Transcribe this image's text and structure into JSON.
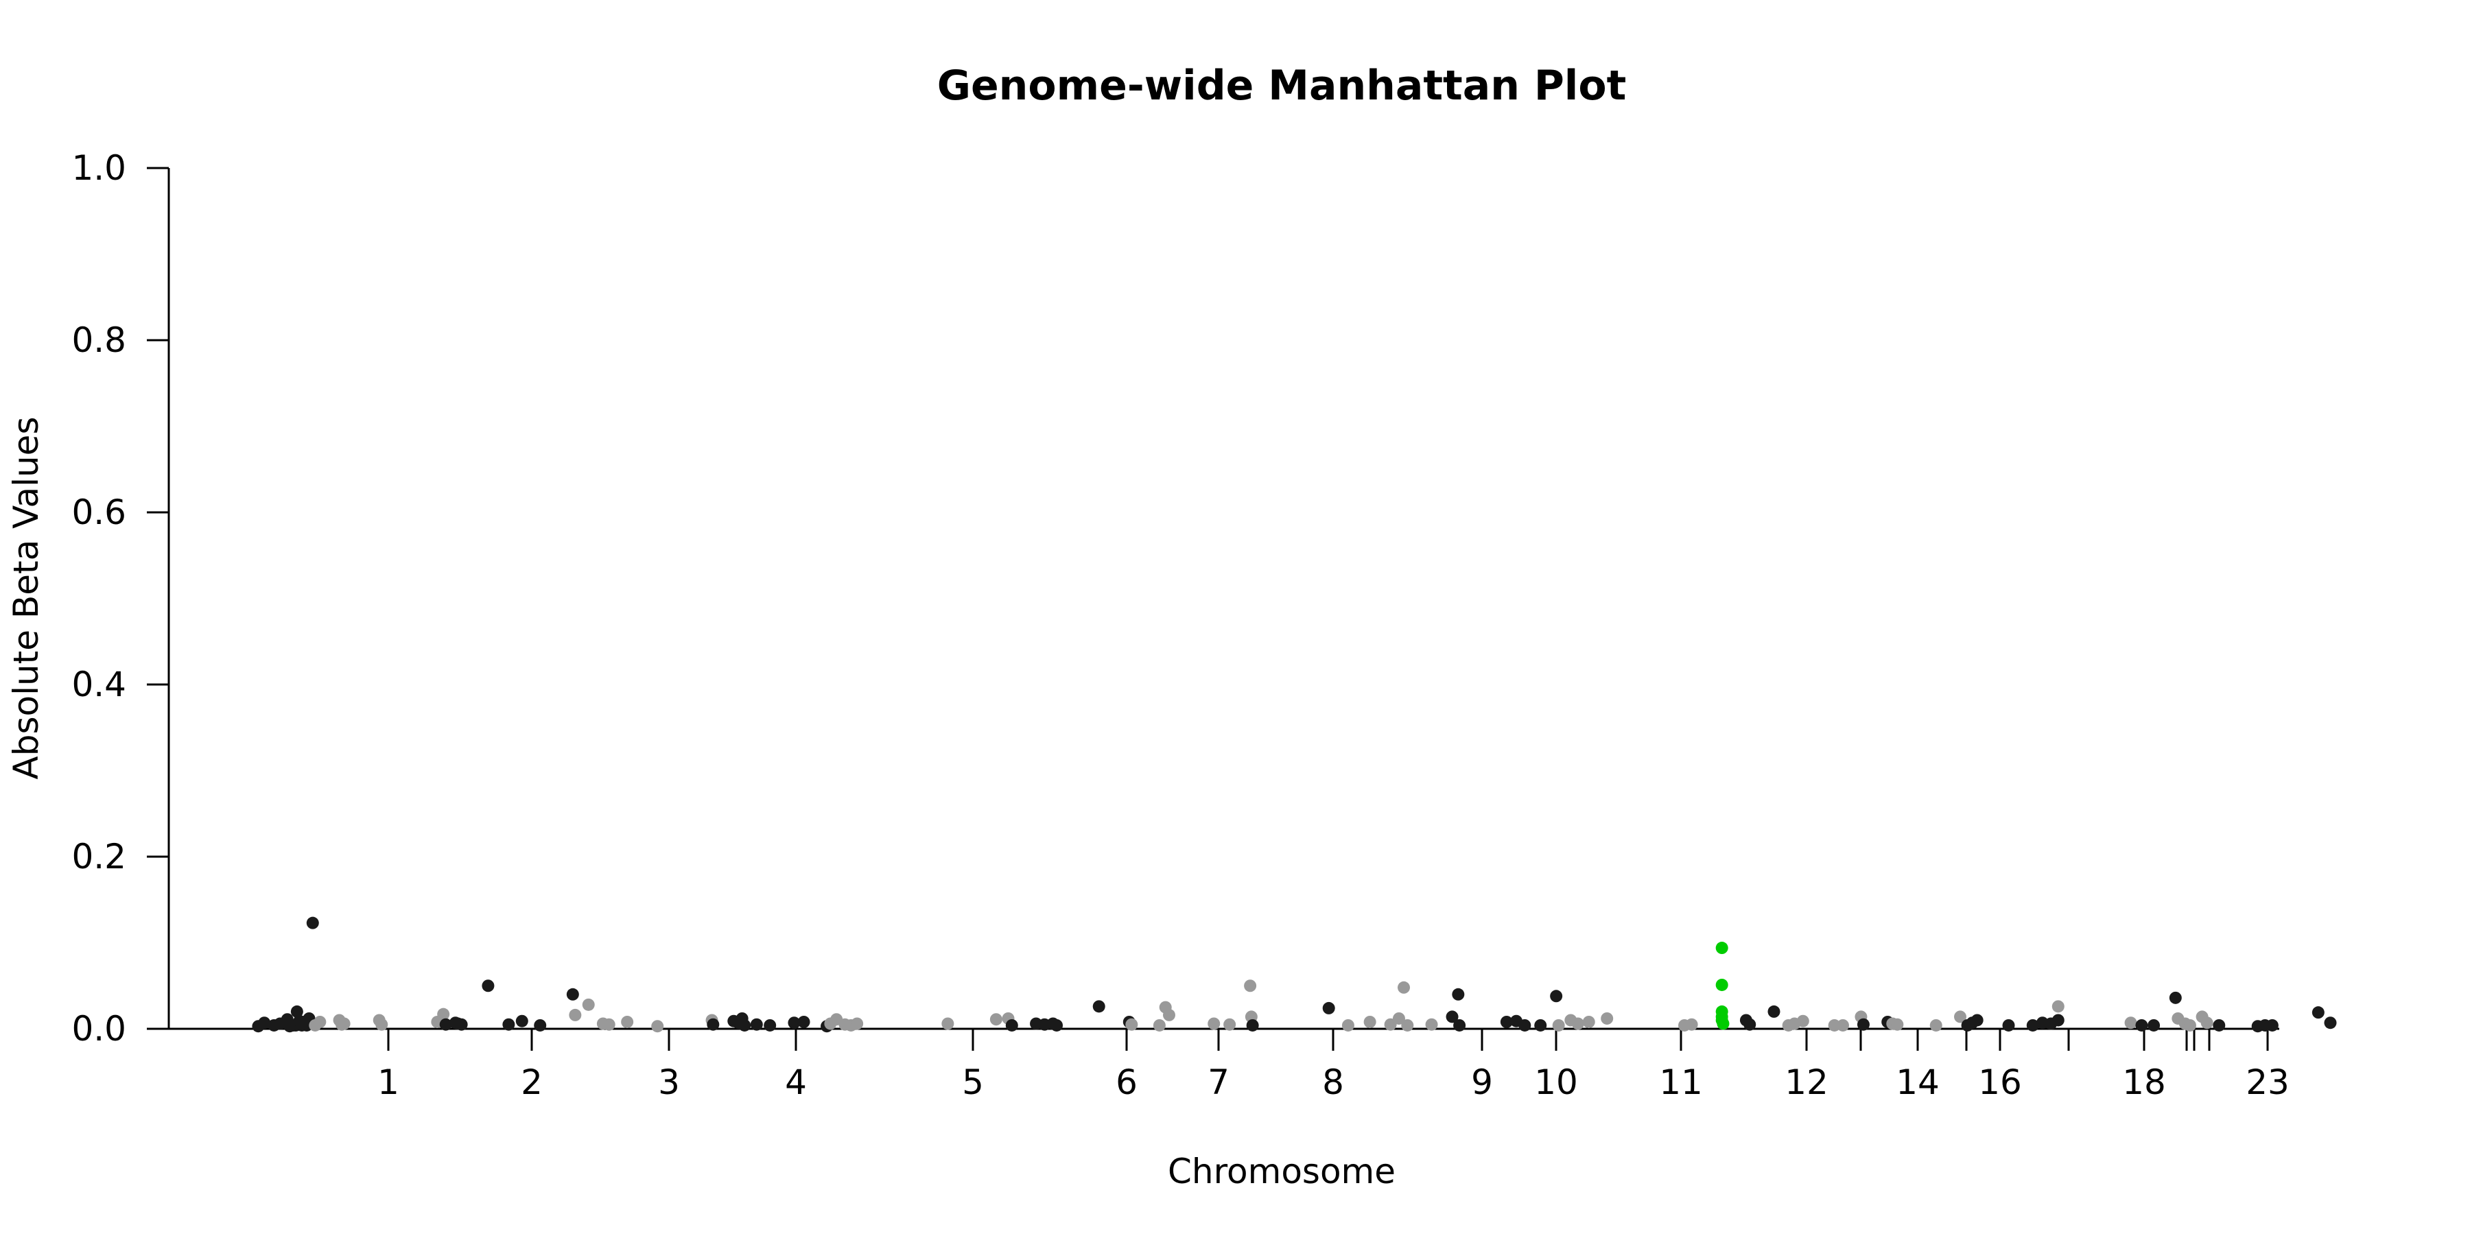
{
  "chart_data": {
    "type": "scatter",
    "title": "Genome-wide Manhattan Plot",
    "xlabel": "Chromosome",
    "ylabel": "Absolute Beta Values",
    "ylim": [
      0,
      1.0
    ],
    "y_ticks": [
      "0.0",
      "0.2",
      "0.4",
      "0.6",
      "0.8",
      "1.0"
    ],
    "x_tick_labels": [
      "1",
      "2",
      "3",
      "4",
      "5",
      "6",
      "7",
      "8",
      "9",
      "10",
      "11",
      "12",
      "14",
      "16",
      "18",
      "23"
    ],
    "colors": {
      "odd_chromosome": "#1a1a1a",
      "even_chromosome": "#999999",
      "highlight": "#00cc00"
    },
    "grid": false,
    "legend": "none",
    "points": [
      {
        "x": 0.15,
        "y": 0.003,
        "c": "odd_chromosome"
      },
      {
        "x": 0.2,
        "y": 0.007,
        "c": "odd_chromosome"
      },
      {
        "x": 0.28,
        "y": 0.004,
        "c": "odd_chromosome"
      },
      {
        "x": 0.33,
        "y": 0.006,
        "c": "odd_chromosome"
      },
      {
        "x": 0.39,
        "y": 0.011,
        "c": "odd_chromosome"
      },
      {
        "x": 0.41,
        "y": 0.003,
        "c": "odd_chromosome"
      },
      {
        "x": 0.44,
        "y": 0.004,
        "c": "odd_chromosome"
      },
      {
        "x": 0.46,
        "y": 0.004,
        "c": "odd_chromosome"
      },
      {
        "x": 0.47,
        "y": 0.02,
        "c": "odd_chromosome"
      },
      {
        "x": 0.48,
        "y": 0.005,
        "c": "odd_chromosome"
      },
      {
        "x": 0.49,
        "y": 0.009,
        "c": "odd_chromosome"
      },
      {
        "x": 0.51,
        "y": 0.004,
        "c": "odd_chromosome"
      },
      {
        "x": 0.52,
        "y": 0.006,
        "c": "odd_chromosome"
      },
      {
        "x": 0.53,
        "y": 0.008,
        "c": "odd_chromosome"
      },
      {
        "x": 0.54,
        "y": 0.005,
        "c": "odd_chromosome"
      },
      {
        "x": 0.55,
        "y": 0.004,
        "c": "odd_chromosome"
      },
      {
        "x": 0.57,
        "y": 0.012,
        "c": "odd_chromosome"
      },
      {
        "x": 0.6,
        "y": 0.123,
        "c": "odd_chromosome"
      },
      {
        "x": 0.62,
        "y": 0.004,
        "c": "even_chromosome"
      },
      {
        "x": 0.66,
        "y": 0.008,
        "c": "even_chromosome"
      },
      {
        "x": 0.82,
        "y": 0.01,
        "c": "even_chromosome"
      },
      {
        "x": 0.84,
        "y": 0.005,
        "c": "even_chromosome"
      },
      {
        "x": 0.86,
        "y": 0.006,
        "c": "even_chromosome"
      },
      {
        "x": 1.15,
        "y": 0.01,
        "c": "even_chromosome"
      },
      {
        "x": 1.17,
        "y": 0.005,
        "c": "even_chromosome"
      },
      {
        "x": 1.63,
        "y": 0.008,
        "c": "even_chromosome"
      },
      {
        "x": 1.68,
        "y": 0.017,
        "c": "even_chromosome"
      },
      {
        "x": 1.7,
        "y": 0.005,
        "c": "odd_chromosome"
      },
      {
        "x": 1.78,
        "y": 0.007,
        "c": "odd_chromosome"
      },
      {
        "x": 1.8,
        "y": 0.006,
        "c": "odd_chromosome"
      },
      {
        "x": 1.83,
        "y": 0.005,
        "c": "odd_chromosome"
      },
      {
        "x": 2.05,
        "y": 0.05,
        "c": "odd_chromosome"
      },
      {
        "x": 2.22,
        "y": 0.005,
        "c": "odd_chromosome"
      },
      {
        "x": 2.33,
        "y": 0.009,
        "c": "odd_chromosome"
      },
      {
        "x": 2.48,
        "y": 0.004,
        "c": "odd_chromosome"
      },
      {
        "x": 2.75,
        "y": 0.04,
        "c": "odd_chromosome"
      },
      {
        "x": 2.77,
        "y": 0.016,
        "c": "even_chromosome"
      },
      {
        "x": 2.88,
        "y": 0.028,
        "c": "even_chromosome"
      },
      {
        "x": 3.0,
        "y": 0.006,
        "c": "even_chromosome"
      },
      {
        "x": 3.05,
        "y": 0.005,
        "c": "even_chromosome"
      },
      {
        "x": 3.2,
        "y": 0.008,
        "c": "even_chromosome"
      },
      {
        "x": 3.45,
        "y": 0.003,
        "c": "even_chromosome"
      },
      {
        "x": 3.9,
        "y": 0.01,
        "c": "even_chromosome"
      },
      {
        "x": 3.91,
        "y": 0.005,
        "c": "odd_chromosome"
      },
      {
        "x": 4.08,
        "y": 0.009,
        "c": "odd_chromosome"
      },
      {
        "x": 4.12,
        "y": 0.007,
        "c": "odd_chromosome"
      },
      {
        "x": 4.15,
        "y": 0.012,
        "c": "odd_chromosome"
      },
      {
        "x": 4.17,
        "y": 0.004,
        "c": "odd_chromosome"
      },
      {
        "x": 4.27,
        "y": 0.005,
        "c": "odd_chromosome"
      },
      {
        "x": 4.38,
        "y": 0.004,
        "c": "odd_chromosome"
      },
      {
        "x": 4.58,
        "y": 0.007,
        "c": "odd_chromosome"
      },
      {
        "x": 4.66,
        "y": 0.008,
        "c": "odd_chromosome"
      },
      {
        "x": 4.85,
        "y": 0.003,
        "c": "odd_chromosome"
      },
      {
        "x": 4.88,
        "y": 0.006,
        "c": "even_chromosome"
      },
      {
        "x": 4.93,
        "y": 0.011,
        "c": "even_chromosome"
      },
      {
        "x": 5.0,
        "y": 0.005,
        "c": "even_chromosome"
      },
      {
        "x": 5.05,
        "y": 0.004,
        "c": "even_chromosome"
      },
      {
        "x": 5.1,
        "y": 0.006,
        "c": "even_chromosome"
      },
      {
        "x": 5.85,
        "y": 0.006,
        "c": "even_chromosome"
      },
      {
        "x": 6.25,
        "y": 0.011,
        "c": "even_chromosome"
      },
      {
        "x": 6.35,
        "y": 0.012,
        "c": "even_chromosome"
      },
      {
        "x": 6.38,
        "y": 0.004,
        "c": "odd_chromosome"
      },
      {
        "x": 6.58,
        "y": 0.006,
        "c": "odd_chromosome"
      },
      {
        "x": 6.65,
        "y": 0.005,
        "c": "odd_chromosome"
      },
      {
        "x": 6.72,
        "y": 0.006,
        "c": "odd_chromosome"
      },
      {
        "x": 6.75,
        "y": 0.004,
        "c": "odd_chromosome"
      },
      {
        "x": 7.1,
        "y": 0.026,
        "c": "odd_chromosome"
      },
      {
        "x": 7.35,
        "y": 0.008,
        "c": "odd_chromosome"
      },
      {
        "x": 7.37,
        "y": 0.005,
        "c": "even_chromosome"
      },
      {
        "x": 7.6,
        "y": 0.004,
        "c": "even_chromosome"
      },
      {
        "x": 7.65,
        "y": 0.025,
        "c": "even_chromosome"
      },
      {
        "x": 7.68,
        "y": 0.016,
        "c": "even_chromosome"
      },
      {
        "x": 8.05,
        "y": 0.006,
        "c": "even_chromosome"
      },
      {
        "x": 8.18,
        "y": 0.005,
        "c": "even_chromosome"
      },
      {
        "x": 8.35,
        "y": 0.05,
        "c": "even_chromosome"
      },
      {
        "x": 8.36,
        "y": 0.014,
        "c": "even_chromosome"
      },
      {
        "x": 8.37,
        "y": 0.004,
        "c": "odd_chromosome"
      },
      {
        "x": 9.0,
        "y": 0.024,
        "c": "odd_chromosome"
      },
      {
        "x": 9.16,
        "y": 0.004,
        "c": "even_chromosome"
      },
      {
        "x": 9.34,
        "y": 0.008,
        "c": "even_chromosome"
      },
      {
        "x": 9.51,
        "y": 0.005,
        "c": "even_chromosome"
      },
      {
        "x": 9.58,
        "y": 0.012,
        "c": "even_chromosome"
      },
      {
        "x": 9.62,
        "y": 0.048,
        "c": "even_chromosome"
      },
      {
        "x": 9.65,
        "y": 0.004,
        "c": "even_chromosome"
      },
      {
        "x": 9.85,
        "y": 0.005,
        "c": "even_chromosome"
      },
      {
        "x": 10.02,
        "y": 0.014,
        "c": "odd_chromosome"
      },
      {
        "x": 10.07,
        "y": 0.04,
        "c": "odd_chromosome"
      },
      {
        "x": 10.08,
        "y": 0.004,
        "c": "odd_chromosome"
      },
      {
        "x": 10.47,
        "y": 0.008,
        "c": "odd_chromosome"
      },
      {
        "x": 10.55,
        "y": 0.009,
        "c": "odd_chromosome"
      },
      {
        "x": 10.62,
        "y": 0.004,
        "c": "odd_chromosome"
      },
      {
        "x": 10.75,
        "y": 0.004,
        "c": "odd_chromosome"
      },
      {
        "x": 10.88,
        "y": 0.038,
        "c": "odd_chromosome"
      },
      {
        "x": 10.9,
        "y": 0.004,
        "c": "even_chromosome"
      },
      {
        "x": 11.0,
        "y": 0.01,
        "c": "even_chromosome"
      },
      {
        "x": 11.06,
        "y": 0.006,
        "c": "even_chromosome"
      },
      {
        "x": 11.15,
        "y": 0.008,
        "c": "even_chromosome"
      },
      {
        "x": 11.3,
        "y": 0.012,
        "c": "even_chromosome"
      },
      {
        "x": 11.94,
        "y": 0.004,
        "c": "even_chromosome"
      },
      {
        "x": 12.0,
        "y": 0.005,
        "c": "even_chromosome"
      },
      {
        "x": 12.25,
        "y": 0.094,
        "c": "highlight"
      },
      {
        "x": 12.25,
        "y": 0.051,
        "c": "highlight"
      },
      {
        "x": 12.25,
        "y": 0.02,
        "c": "highlight"
      },
      {
        "x": 12.25,
        "y": 0.014,
        "c": "highlight"
      },
      {
        "x": 12.25,
        "y": 0.01,
        "c": "highlight"
      },
      {
        "x": 12.26,
        "y": 0.006,
        "c": "highlight"
      },
      {
        "x": 12.45,
        "y": 0.01,
        "c": "odd_chromosome"
      },
      {
        "x": 12.48,
        "y": 0.005,
        "c": "odd_chromosome"
      },
      {
        "x": 12.68,
        "y": 0.02,
        "c": "odd_chromosome"
      },
      {
        "x": 12.8,
        "y": 0.004,
        "c": "even_chromosome"
      },
      {
        "x": 12.85,
        "y": 0.006,
        "c": "even_chromosome"
      },
      {
        "x": 12.92,
        "y": 0.009,
        "c": "even_chromosome"
      },
      {
        "x": 13.18,
        "y": 0.004,
        "c": "even_chromosome"
      },
      {
        "x": 13.25,
        "y": 0.004,
        "c": "even_chromosome"
      },
      {
        "x": 13.4,
        "y": 0.014,
        "c": "even_chromosome"
      },
      {
        "x": 13.42,
        "y": 0.005,
        "c": "odd_chromosome"
      },
      {
        "x": 13.62,
        "y": 0.008,
        "c": "odd_chromosome"
      },
      {
        "x": 13.66,
        "y": 0.006,
        "c": "even_chromosome"
      },
      {
        "x": 13.7,
        "y": 0.005,
        "c": "even_chromosome"
      },
      {
        "x": 14.02,
        "y": 0.004,
        "c": "even_chromosome"
      },
      {
        "x": 14.22,
        "y": 0.014,
        "c": "even_chromosome"
      },
      {
        "x": 14.28,
        "y": 0.004,
        "c": "odd_chromosome"
      },
      {
        "x": 14.32,
        "y": 0.007,
        "c": "odd_chromosome"
      },
      {
        "x": 14.36,
        "y": 0.01,
        "c": "odd_chromosome"
      },
      {
        "x": 14.62,
        "y": 0.004,
        "c": "odd_chromosome"
      },
      {
        "x": 14.82,
        "y": 0.004,
        "c": "odd_chromosome"
      },
      {
        "x": 14.9,
        "y": 0.007,
        "c": "odd_chromosome"
      },
      {
        "x": 14.97,
        "y": 0.006,
        "c": "odd_chromosome"
      },
      {
        "x": 15.03,
        "y": 0.01,
        "c": "odd_chromosome"
      },
      {
        "x": 15.03,
        "y": 0.026,
        "c": "even_chromosome"
      },
      {
        "x": 15.63,
        "y": 0.007,
        "c": "even_chromosome"
      },
      {
        "x": 15.72,
        "y": 0.004,
        "c": "odd_chromosome"
      },
      {
        "x": 15.82,
        "y": 0.004,
        "c": "odd_chromosome"
      },
      {
        "x": 16.0,
        "y": 0.036,
        "c": "odd_chromosome"
      },
      {
        "x": 16.02,
        "y": 0.012,
        "c": "even_chromosome"
      },
      {
        "x": 16.08,
        "y": 0.006,
        "c": "even_chromosome"
      },
      {
        "x": 16.12,
        "y": 0.004,
        "c": "even_chromosome"
      },
      {
        "x": 16.22,
        "y": 0.014,
        "c": "even_chromosome"
      },
      {
        "x": 16.26,
        "y": 0.007,
        "c": "even_chromosome"
      },
      {
        "x": 16.36,
        "y": 0.004,
        "c": "odd_chromosome"
      },
      {
        "x": 16.68,
        "y": 0.003,
        "c": "odd_chromosome"
      },
      {
        "x": 16.74,
        "y": 0.004,
        "c": "odd_chromosome"
      },
      {
        "x": 16.8,
        "y": 0.004,
        "c": "odd_chromosome"
      },
      {
        "x": 17.18,
        "y": 0.019,
        "c": "odd_chromosome"
      },
      {
        "x": 17.28,
        "y": 0.007,
        "c": "odd_chromosome"
      }
    ]
  }
}
